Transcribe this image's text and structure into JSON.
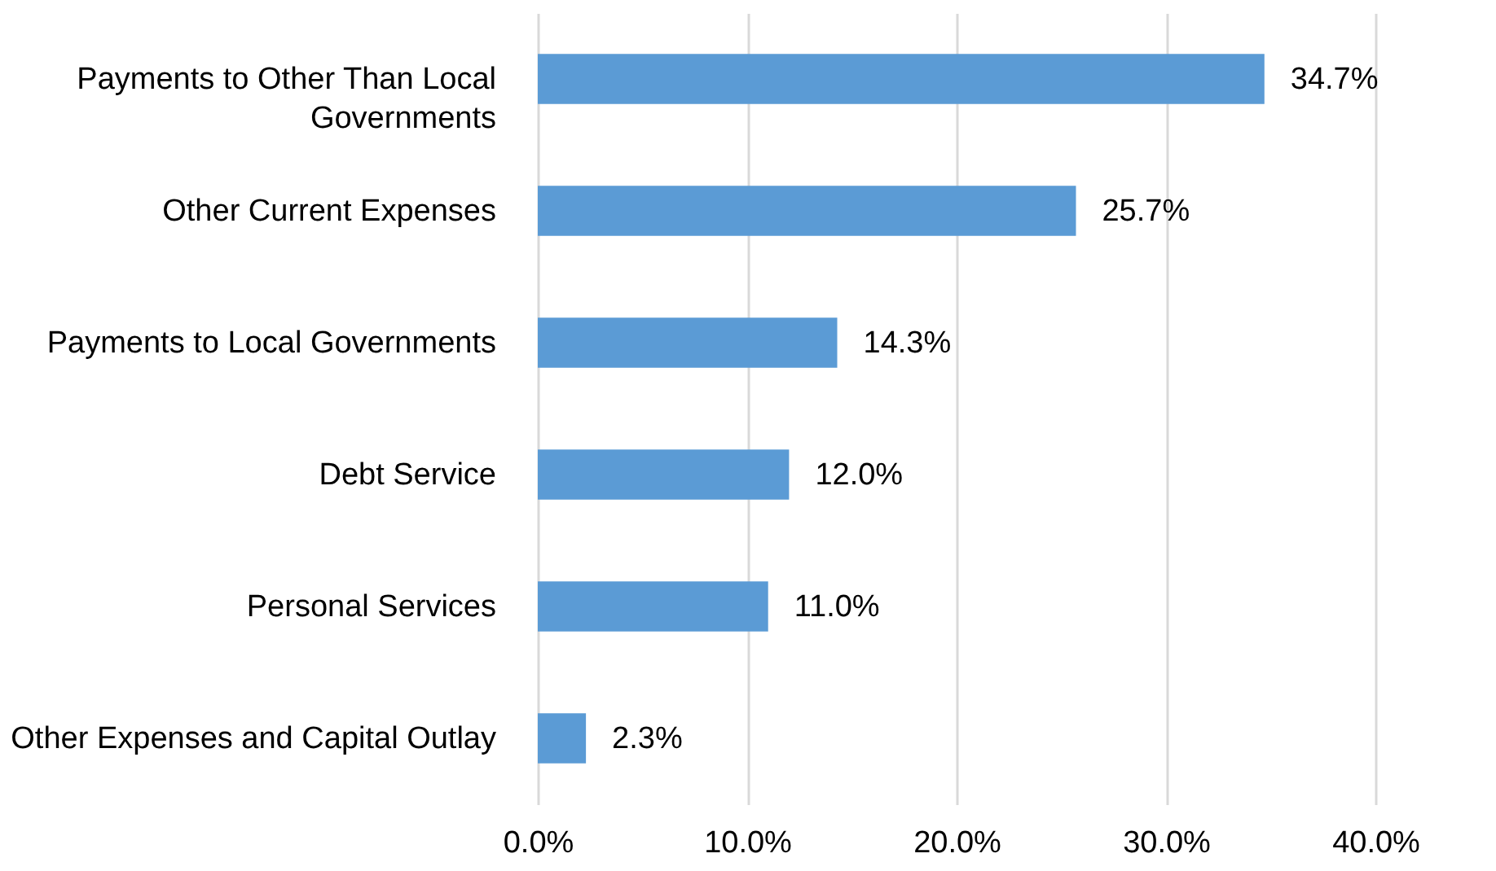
{
  "chart_data": {
    "type": "bar",
    "orientation": "horizontal",
    "categories": [
      "Payments to Other Than Local Governments",
      "Other Current Expenses",
      "Payments to Local Governments",
      "Debt Service",
      "Personal Services",
      "Other Expenses and Capital Outlay"
    ],
    "values": [
      34.7,
      25.7,
      14.3,
      12.0,
      11.0,
      2.3
    ],
    "value_labels": [
      "34.7%",
      "25.7%",
      "14.3%",
      "12.0%",
      "11.0%",
      "2.3%"
    ],
    "color": "#5b9bd5",
    "xlim": [
      0,
      40
    ],
    "xticks": [
      {
        "value": 0,
        "label": "0.0%"
      },
      {
        "value": 10,
        "label": "10.0%"
      },
      {
        "value": 20,
        "label": "20.0%"
      },
      {
        "value": 30,
        "label": "30.0%"
      },
      {
        "value": 40,
        "label": "40.0%"
      }
    ],
    "grid": "x"
  }
}
